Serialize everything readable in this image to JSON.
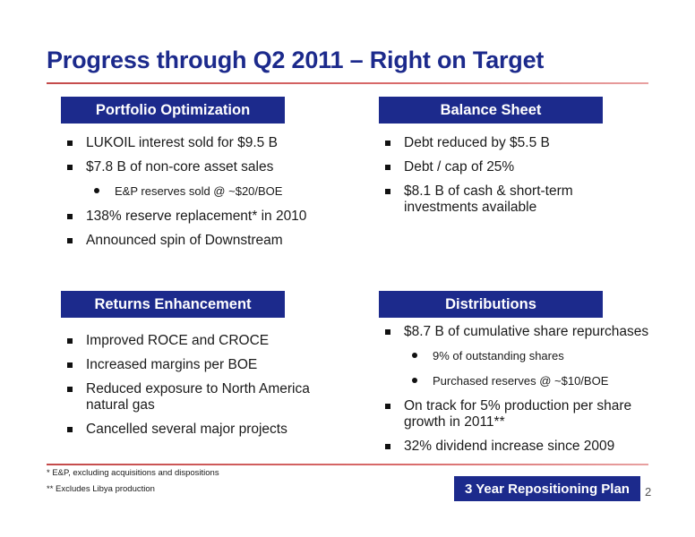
{
  "slide": {
    "title": "Progress through Q2 2011 – Right on Target",
    "page_number": "2"
  },
  "portfolio": {
    "header": "Portfolio Optimization",
    "items": [
      "LUKOIL interest sold for $9.5 B",
      "$7.8 B of non-core asset sales",
      "E&P reserves sold @ ~$20/BOE",
      "138% reserve replacement* in 2010",
      "Announced spin of Downstream"
    ]
  },
  "balance": {
    "header": "Balance Sheet",
    "items": [
      "Debt reduced by $5.5 B",
      "Debt / cap of 25%",
      "$8.1 B of cash & short-term investments available"
    ]
  },
  "returns": {
    "header": "Returns Enhancement",
    "items": [
      "Improved ROCE and CROCE",
      "Increased margins per BOE",
      "Reduced exposure to North America natural gas",
      "Cancelled several major projects"
    ]
  },
  "distributions": {
    "header": "Distributions",
    "items": [
      "$8.7 B of cumulative share repurchases",
      "9% of outstanding shares",
      "Purchased reserves @ ~$10/BOE",
      "On track for 5% production per share growth in 2011**",
      "32% dividend increase since 2009"
    ]
  },
  "footnotes": [
    "* E&P, excluding acquisitions and dispositions",
    "** Excludes Libya production"
  ],
  "plan_badge": "3 Year Repositioning Plan",
  "colors": {
    "navy": "#1c2a8c",
    "rule_red": "#c44a4a"
  }
}
